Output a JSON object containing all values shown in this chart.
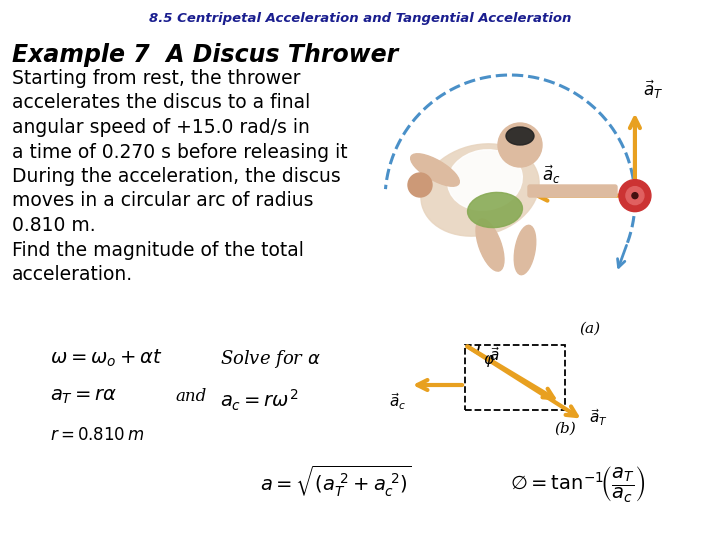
{
  "title": "8.5 Centripetal Acceleration and Tangential Acceleration",
  "title_color": "#1a1e8f",
  "title_fontsize": 9.5,
  "background_color": "#ffffff",
  "example_heading": "Example 7  A Discus Thrower",
  "body_lines": [
    "Starting from rest, the thrower",
    "accelerates the discus to a final",
    "angular speed of +15.0 rad/s in",
    "a time of 0.270 s before releasing it",
    "During the acceleration, the discus",
    "moves in a circular arc of radius",
    "0.810 m.",
    "Find the magnitude of the total",
    "acceleration."
  ],
  "label_a": "(a)",
  "label_b": "(b)",
  "body_fontsize": 13.5,
  "heading_fontsize": 17,
  "eq_fontsize": 13,
  "arrow_color": "#e8a020",
  "arc_color": "#4a90c8",
  "discus_color_outer": "#cc3333",
  "discus_color_inner": "#e06060",
  "rect_color": "#e8a020"
}
